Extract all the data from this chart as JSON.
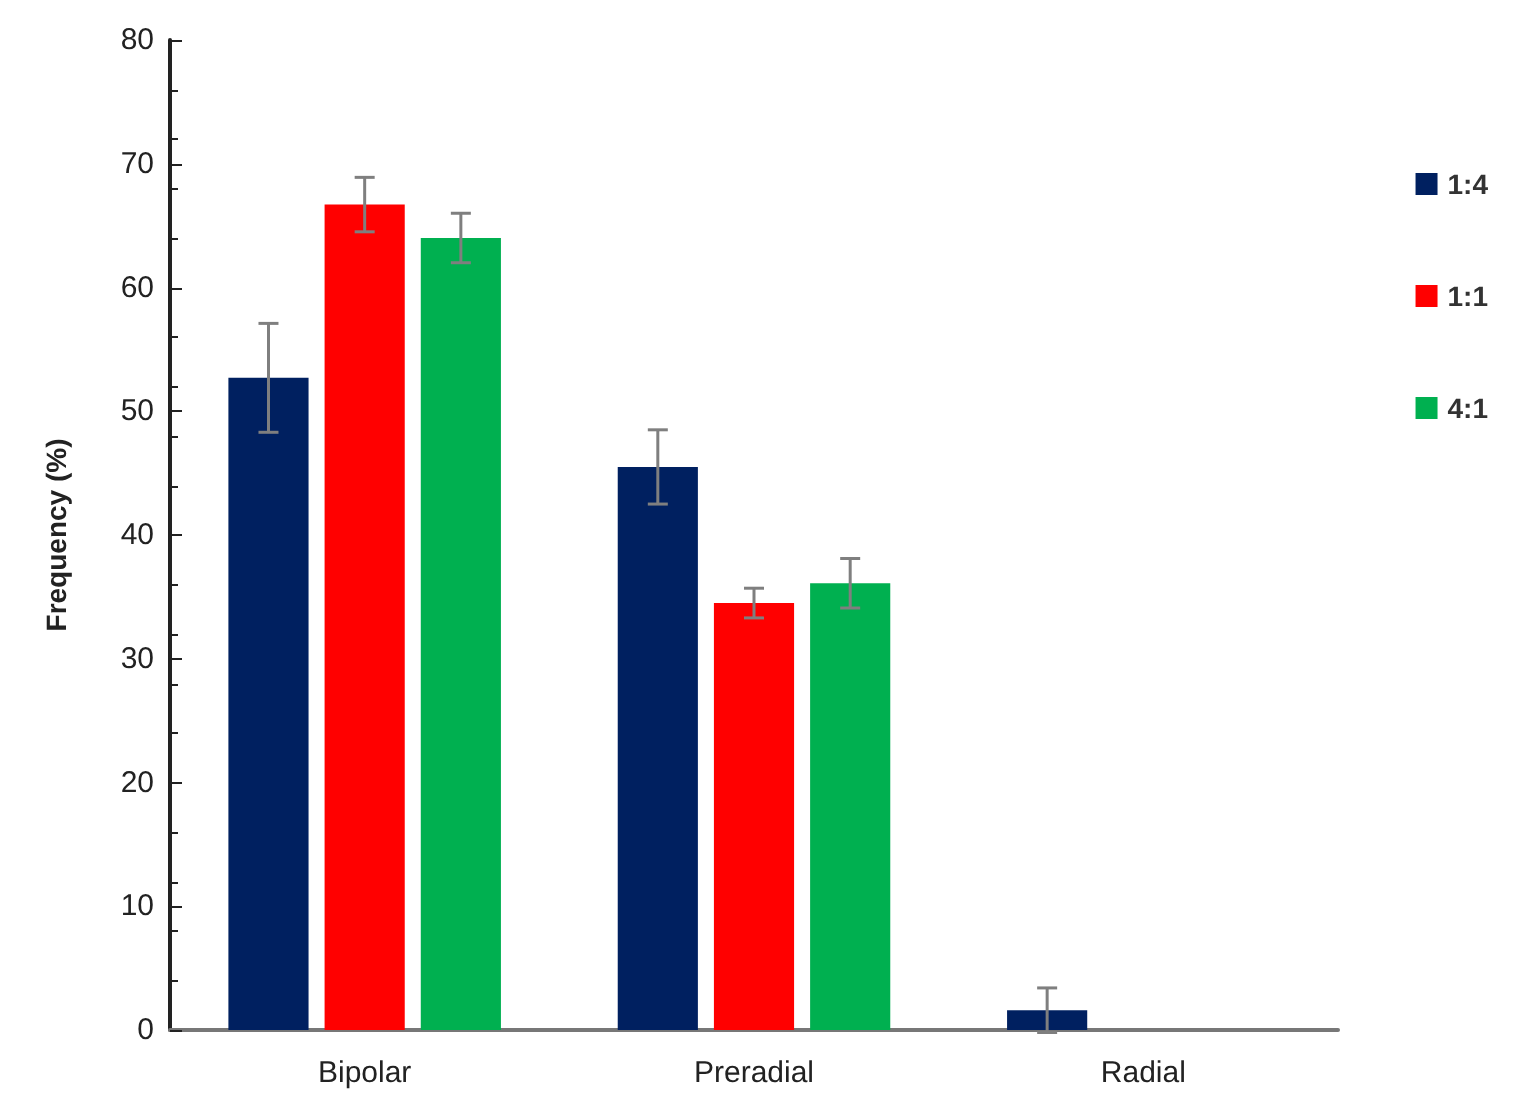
{
  "chart_data": {
    "type": "bar",
    "ylabel": "Frequency (%)",
    "categories": [
      "Bipolar",
      "Preradial",
      "Radial"
    ],
    "series": [
      {
        "name": "1:4",
        "color": "#002060",
        "values": [
          52.7,
          45.5,
          1.6
        ],
        "errors": [
          4.4,
          3,
          1.8
        ]
      },
      {
        "name": "1:1",
        "color": "#ff0000",
        "values": [
          66.7,
          34.5,
          0
        ],
        "errors": [
          2.2,
          1.2,
          null
        ]
      },
      {
        "name": "4:1",
        "color": "#00b050",
        "values": [
          64,
          36.1,
          0
        ],
        "errors": [
          2,
          2,
          null
        ]
      }
    ],
    "ylim": [
      0,
      80
    ],
    "yticks": [
      0,
      10,
      20,
      30,
      40,
      50,
      60,
      70,
      80
    ],
    "grid": false,
    "legend": "right"
  }
}
